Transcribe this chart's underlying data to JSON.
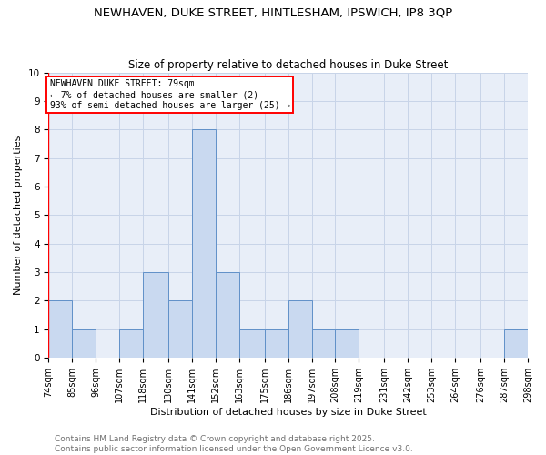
{
  "title": "NEWHAVEN, DUKE STREET, HINTLESHAM, IPSWICH, IP8 3QP",
  "subtitle": "Size of property relative to detached houses in Duke Street",
  "xlabel": "Distribution of detached houses by size in Duke Street",
  "ylabel": "Number of detached properties",
  "bin_edges": [
    74,
    85,
    96,
    107,
    118,
    130,
    141,
    152,
    163,
    175,
    186,
    197,
    208,
    219,
    231,
    242,
    253,
    264,
    276,
    287,
    298
  ],
  "bin_labels": [
    "74sqm",
    "85sqm",
    "96sqm",
    "107sqm",
    "118sqm",
    "130sqm",
    "141sqm",
    "152sqm",
    "163sqm",
    "175sqm",
    "186sqm",
    "197sqm",
    "208sqm",
    "219sqm",
    "231sqm",
    "242sqm",
    "253sqm",
    "264sqm",
    "276sqm",
    "287sqm",
    "298sqm"
  ],
  "counts": [
    2,
    1,
    0,
    1,
    3,
    2,
    8,
    3,
    1,
    1,
    2,
    1,
    1,
    0,
    0,
    0,
    0,
    0,
    0,
    1
  ],
  "bar_color": "#c9d9f0",
  "bar_edge_color": "#6090c8",
  "grid_color": "#c8d4e8",
  "background_color": "#e8eef8",
  "annotation_text_line1": "NEWHAVEN DUKE STREET: 79sqm",
  "annotation_text_line2": "← 7% of detached houses are smaller (2)",
  "annotation_text_line3": "93% of semi-detached houses are larger (25) →",
  "annotation_box_facecolor": "white",
  "annotation_box_edgecolor": "red",
  "red_line_x": 74,
  "ylim": [
    0,
    10
  ],
  "yticks": [
    0,
    1,
    2,
    3,
    4,
    5,
    6,
    7,
    8,
    9,
    10
  ],
  "footer_text": "Contains HM Land Registry data © Crown copyright and database right 2025.\nContains public sector information licensed under the Open Government Licence v3.0.",
  "title_fontsize": 9.5,
  "subtitle_fontsize": 8.5,
  "tick_fontsize": 7,
  "xlabel_fontsize": 8,
  "ylabel_fontsize": 8,
  "annotation_fontsize": 7,
  "footer_fontsize": 6.5
}
